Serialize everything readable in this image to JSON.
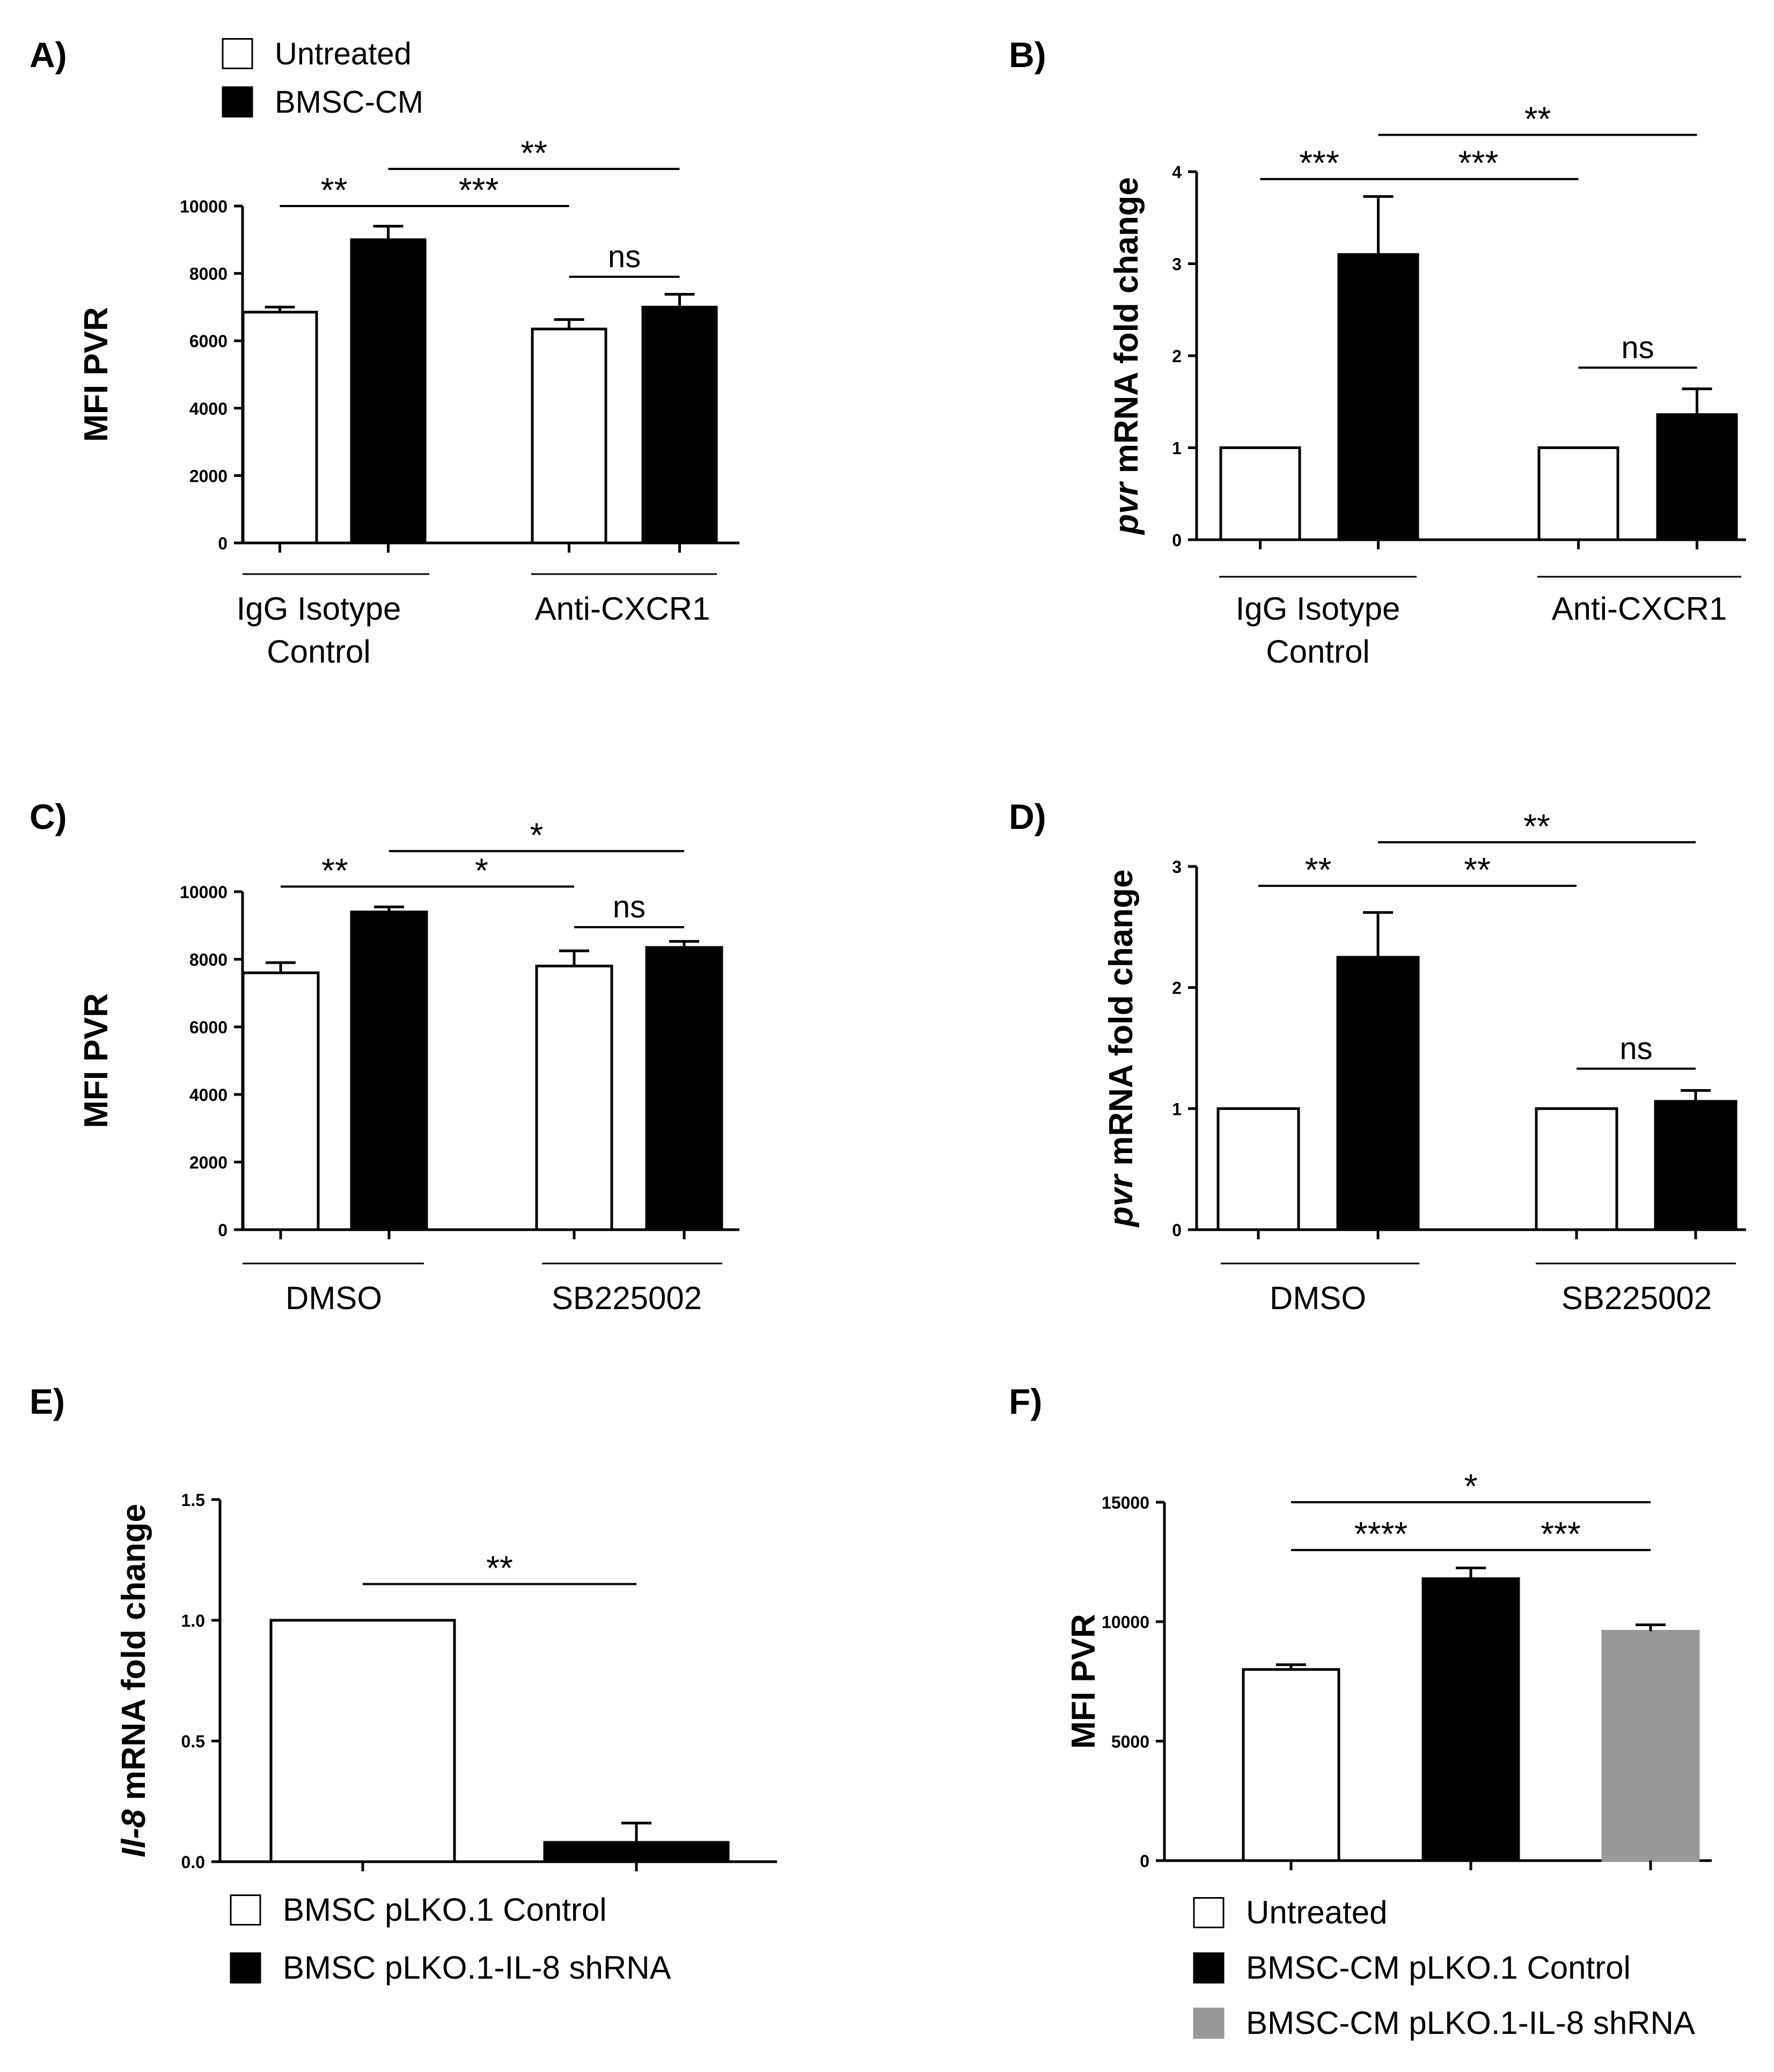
{
  "colors": {
    "untreated": "#ffffff",
    "bmsc_cm": "#000000",
    "shrna": "#989898",
    "stroke": "#000000"
  },
  "chart_data": [
    {
      "panel": "A)",
      "type": "bar",
      "ylabel": "MFI PVR",
      "ylabel_italic_part": "",
      "ylim": [
        0,
        10000
      ],
      "yticks": [
        0,
        2000,
        4000,
        6000,
        8000,
        10000
      ],
      "ytick_labels": [
        "0",
        "2000",
        "4000",
        "6000",
        "8000",
        "10000"
      ],
      "groups": [
        {
          "label_lines": [
            "IgG Isotype",
            "Control"
          ]
        },
        {
          "label_lines": [
            "Anti-CXCR1"
          ]
        }
      ],
      "bars": [
        {
          "group": 0,
          "series": "untreated",
          "value": 6850,
          "error": 150
        },
        {
          "group": 0,
          "series": "bmsc_cm",
          "value": 9000,
          "error": 400
        },
        {
          "group": 1,
          "series": "untreated",
          "value": 6350,
          "error": 280
        },
        {
          "group": 1,
          "series": "bmsc_cm",
          "value": 7000,
          "error": 380
        }
      ],
      "significance": [
        {
          "from": 0,
          "to": 1,
          "label": "**",
          "level": 10000
        },
        {
          "from": 1,
          "to": 2,
          "label": "***",
          "level": 10000
        },
        {
          "from": 1,
          "to": 3,
          "label": "**",
          "level": 11100
        },
        {
          "from": 2,
          "to": 3,
          "label": "ns",
          "level": 7900
        }
      ],
      "legend": [
        {
          "label": "Untreated",
          "series": "untreated"
        },
        {
          "label": "BMSC-CM",
          "series": "bmsc_cm"
        }
      ]
    },
    {
      "panel": "B)",
      "type": "bar",
      "ylabel": " mRNA fold change",
      "ylabel_italic_part": "pvr",
      "ylim": [
        0,
        4
      ],
      "yticks": [
        0,
        1,
        2,
        3,
        4
      ],
      "ytick_labels": [
        "0",
        "1",
        "2",
        "3",
        "4"
      ],
      "groups": [
        {
          "label_lines": [
            "IgG Isotype",
            "Control"
          ]
        },
        {
          "label_lines": [
            "Anti-CXCR1"
          ]
        }
      ],
      "bars": [
        {
          "group": 0,
          "series": "untreated",
          "value": 1.0,
          "error": 0
        },
        {
          "group": 0,
          "series": "bmsc_cm",
          "value": 3.1,
          "error": 0.63
        },
        {
          "group": 1,
          "series": "untreated",
          "value": 1.0,
          "error": 0
        },
        {
          "group": 1,
          "series": "bmsc_cm",
          "value": 1.36,
          "error": 0.28
        }
      ],
      "significance": [
        {
          "from": 0,
          "to": 1,
          "label": "***",
          "level": 3.92
        },
        {
          "from": 1,
          "to": 2,
          "label": "***",
          "level": 3.92
        },
        {
          "from": 1,
          "to": 3,
          "label": "**",
          "level": 4.4
        },
        {
          "from": 2,
          "to": 3,
          "label": "ns",
          "level": 1.87
        }
      ],
      "legend": []
    },
    {
      "panel": "C)",
      "type": "bar",
      "ylabel": "MFI PVR",
      "ylabel_italic_part": "",
      "ylim": [
        0,
        10000
      ],
      "yticks": [
        0,
        2000,
        4000,
        6000,
        8000,
        10000
      ],
      "ytick_labels": [
        "0",
        "2000",
        "4000",
        "6000",
        "8000",
        "10000"
      ],
      "groups": [
        {
          "label_lines": [
            "DMSO"
          ]
        },
        {
          "label_lines": [
            "SB225002"
          ]
        }
      ],
      "bars": [
        {
          "group": 0,
          "series": "untreated",
          "value": 7600,
          "error": 300
        },
        {
          "group": 0,
          "series": "bmsc_cm",
          "value": 9400,
          "error": 150
        },
        {
          "group": 1,
          "series": "untreated",
          "value": 7800,
          "error": 450
        },
        {
          "group": 1,
          "series": "bmsc_cm",
          "value": 8350,
          "error": 180
        }
      ],
      "significance": [
        {
          "from": 0,
          "to": 1,
          "label": "**",
          "level": 10150
        },
        {
          "from": 1,
          "to": 2,
          "label": "*",
          "level": 10150
        },
        {
          "from": 1,
          "to": 3,
          "label": "*",
          "level": 11200
        },
        {
          "from": 2,
          "to": 3,
          "label": "ns",
          "level": 8950
        }
      ],
      "legend": []
    },
    {
      "panel": "D)",
      "type": "bar",
      "ylabel": "  mRNA  fold change",
      "ylabel_italic_part": "pvr",
      "ylim": [
        0,
        3
      ],
      "yticks": [
        0,
        1,
        2,
        3
      ],
      "ytick_labels": [
        "0",
        "1",
        "2",
        "3"
      ],
      "groups": [
        {
          "label_lines": [
            "DMSO"
          ]
        },
        {
          "label_lines": [
            "SB225002"
          ]
        }
      ],
      "bars": [
        {
          "group": 0,
          "series": "untreated",
          "value": 1.0,
          "error": 0
        },
        {
          "group": 0,
          "series": "bmsc_cm",
          "value": 2.25,
          "error": 0.37
        },
        {
          "group": 1,
          "series": "untreated",
          "value": 1.0,
          "error": 0
        },
        {
          "group": 1,
          "series": "bmsc_cm",
          "value": 1.06,
          "error": 0.09
        }
      ],
      "significance": [
        {
          "from": 0,
          "to": 1,
          "label": "**",
          "level": 2.84
        },
        {
          "from": 1,
          "to": 2,
          "label": "**",
          "level": 2.84
        },
        {
          "from": 1,
          "to": 3,
          "label": "**",
          "level": 3.2
        },
        {
          "from": 2,
          "to": 3,
          "label": "ns",
          "level": 1.33
        }
      ],
      "legend": []
    },
    {
      "panel": "E)",
      "type": "bar",
      "ylabel": "  mRNA  fold change",
      "ylabel_italic_part": "Il-8",
      "ylim": [
        0,
        1.5
      ],
      "yticks": [
        0,
        0.5,
        1.0,
        1.5
      ],
      "ytick_labels": [
        "0.0",
        "0.5",
        "1.0",
        "1.5"
      ],
      "groups": [],
      "bars": [
        {
          "group": 0,
          "series": "untreated",
          "value": 1.0,
          "error": 0
        },
        {
          "group": 1,
          "series": "bmsc_cm",
          "value": 0.08,
          "error": 0.08
        }
      ],
      "significance": [
        {
          "from": 0,
          "to": 1,
          "label": "**",
          "level": 1.15
        }
      ],
      "legend": [
        {
          "label": "BMSC pLKO.1 Control",
          "series": "untreated"
        },
        {
          "label": "BMSC pLKO.1-IL-8 shRNA",
          "series": "bmsc_cm"
        }
      ]
    },
    {
      "panel": "F)",
      "type": "bar",
      "ylabel": "MFI PVR",
      "ylabel_italic_part": "",
      "ylim": [
        0,
        15000
      ],
      "yticks": [
        0,
        5000,
        10000,
        15000
      ],
      "ytick_labels": [
        "0",
        "5000",
        "10000",
        "15000"
      ],
      "groups": [],
      "bars": [
        {
          "group": 0,
          "series": "untreated",
          "value": 8000,
          "error": 200
        },
        {
          "group": 1,
          "series": "bmsc_cm",
          "value": 11800,
          "error": 450
        },
        {
          "group": 2,
          "series": "shrna",
          "value": 9600,
          "error": 270
        }
      ],
      "significance": [
        {
          "from": 0,
          "to": 1,
          "label": "****",
          "level": 13000
        },
        {
          "from": 1,
          "to": 2,
          "label": "***",
          "level": 13000
        },
        {
          "from": 0,
          "to": 2,
          "label": "*",
          "level": 15000
        }
      ],
      "legend": [
        {
          "label": "Untreated",
          "series": "untreated"
        },
        {
          "label": "BMSC-CM pLKO.1 Control",
          "series": "bmsc_cm"
        },
        {
          "label": "BMSC-CM  pLKO.1-IL-8 shRNA",
          "series": "shrna"
        }
      ]
    }
  ]
}
